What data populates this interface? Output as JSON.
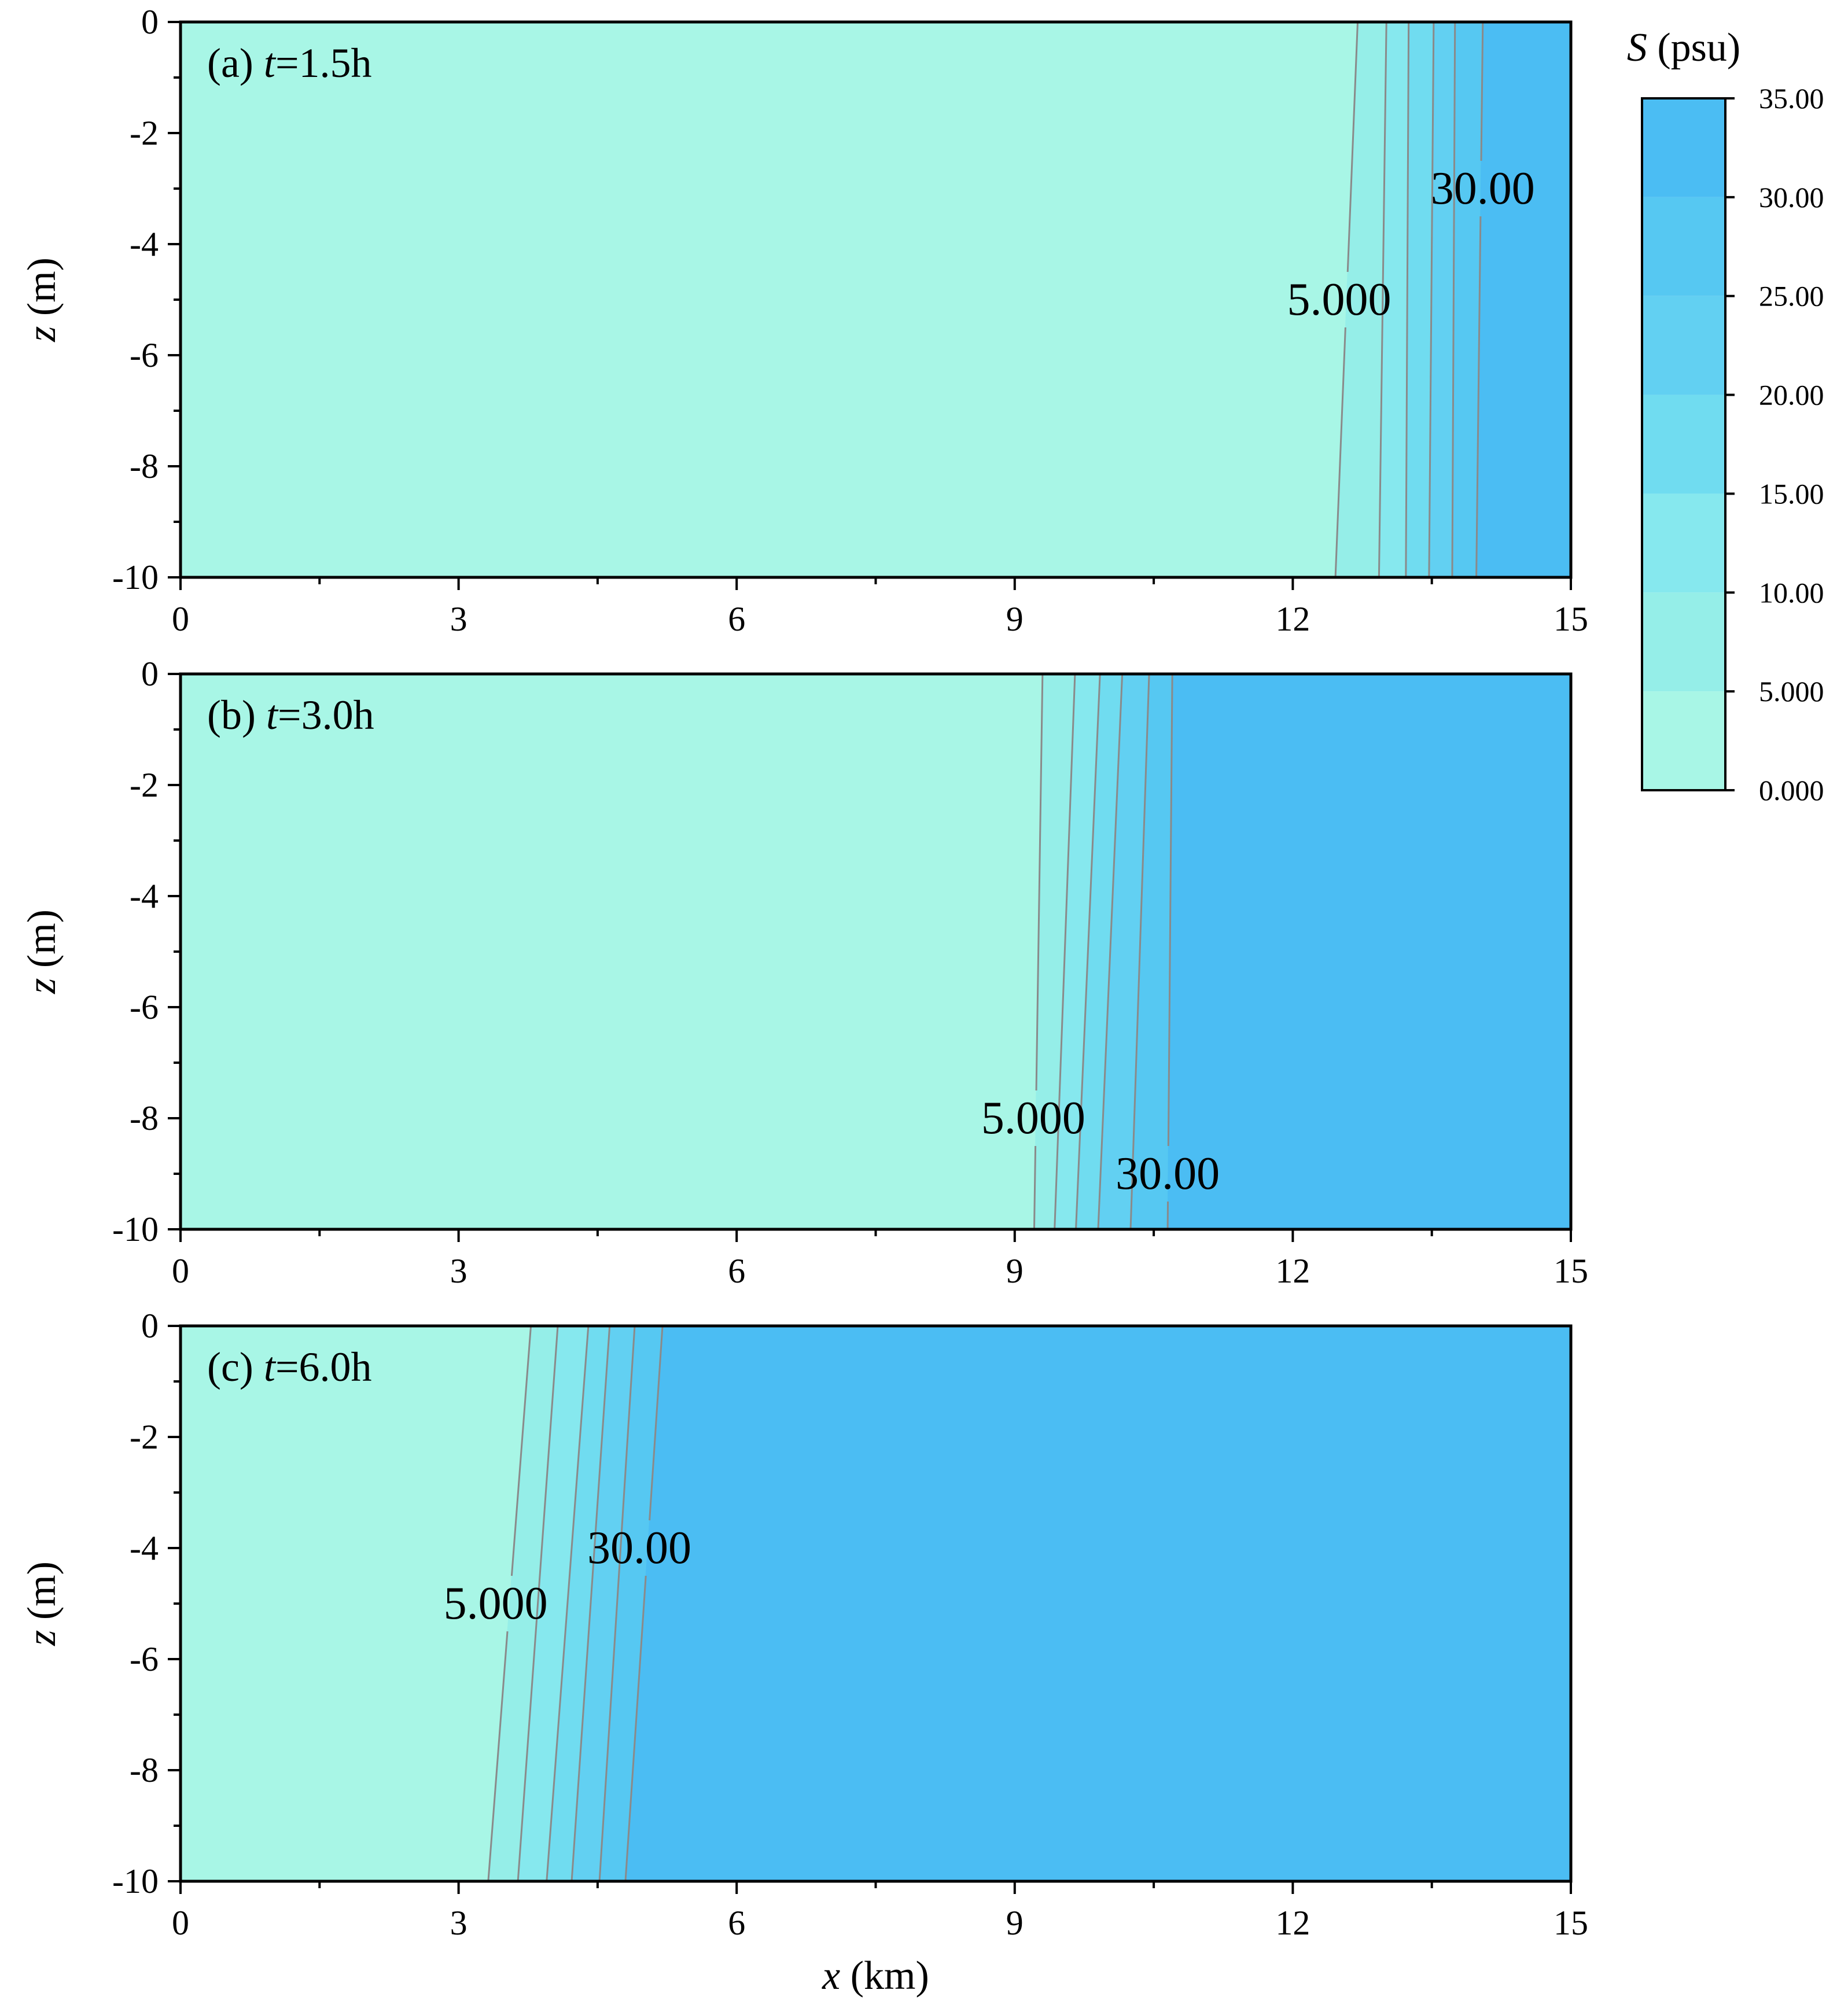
{
  "chart_data": {
    "type": "heatmap",
    "subtype": "filled-contour",
    "xlabel_var": "x",
    "xlabel_unit": "(km)",
    "ylabel_var": "z",
    "ylabel_unit": "(m)",
    "xlim": [
      0,
      15
    ],
    "ylim": [
      -10,
      0
    ],
    "x_ticks": [
      "0",
      "3",
      "6",
      "9",
      "12",
      "15"
    ],
    "y_ticks": [
      "0",
      "-2",
      "-4",
      "-6",
      "-8",
      "-10"
    ],
    "colorbar": {
      "title_var": "S",
      "title_unit": "(psu)",
      "range": [
        0,
        35
      ],
      "ticks": [
        "0.000",
        "5.000",
        "10.00",
        "15.00",
        "20.00",
        "25.00",
        "30.00",
        "35.00"
      ],
      "levels": [
        0,
        5,
        10,
        15,
        20,
        25,
        30,
        35
      ],
      "colors": [
        "#A8F6E6",
        "#95EEE8",
        "#86E8EE",
        "#70DCF0",
        "#62D0F2",
        "#56C8F2",
        "#4BBDF3"
      ]
    },
    "panels": [
      {
        "id": "a",
        "label_prefix": "(a) ",
        "label_var": "t",
        "label_value": "=1.5h",
        "contours": [
          {
            "level": 5,
            "x_bottom": 12.46,
            "x_top": 12.7
          },
          {
            "level": 10,
            "x_bottom": 12.93,
            "x_top": 13.01
          },
          {
            "level": 15,
            "x_bottom": 13.22,
            "x_top": 13.25
          },
          {
            "level": 20,
            "x_bottom": 13.47,
            "x_top": 13.52
          },
          {
            "level": 25,
            "x_bottom": 13.72,
            "x_top": 13.75
          },
          {
            "level": 30,
            "x_bottom": 13.98,
            "x_top": 14.05
          }
        ],
        "contour_labels": [
          {
            "text": "5.000",
            "x": 12.5,
            "z": -5.0
          },
          {
            "text": "30.00",
            "x": 14.05,
            "z": -3.0
          }
        ]
      },
      {
        "id": "b",
        "label_prefix": "(b) ",
        "label_var": "t",
        "label_value": "=3.0h",
        "contours": [
          {
            "level": 5,
            "x_bottom": 9.21,
            "x_top": 9.3
          },
          {
            "level": 10,
            "x_bottom": 9.43,
            "x_top": 9.65
          },
          {
            "level": 15,
            "x_bottom": 9.66,
            "x_top": 9.92
          },
          {
            "level": 20,
            "x_bottom": 9.9,
            "x_top": 10.16
          },
          {
            "level": 25,
            "x_bottom": 10.25,
            "x_top": 10.45
          },
          {
            "level": 30,
            "x_bottom": 10.65,
            "x_top": 10.7
          }
        ],
        "contour_labels": [
          {
            "text": "5.000",
            "x": 9.2,
            "z": -8.0
          },
          {
            "text": "30.00",
            "x": 10.65,
            "z": -9.0
          }
        ]
      },
      {
        "id": "c",
        "label_prefix": "(c) ",
        "label_var": "t",
        "label_value": "=6.0h",
        "contours": [
          {
            "level": 5,
            "x_bottom": 3.32,
            "x_top": 3.78
          },
          {
            "level": 10,
            "x_bottom": 3.64,
            "x_top": 4.07
          },
          {
            "level": 15,
            "x_bottom": 3.95,
            "x_top": 4.4
          },
          {
            "level": 20,
            "x_bottom": 4.22,
            "x_top": 4.63
          },
          {
            "level": 25,
            "x_bottom": 4.52,
            "x_top": 4.9
          },
          {
            "level": 30,
            "x_bottom": 4.8,
            "x_top": 5.2
          }
        ],
        "contour_labels": [
          {
            "text": "5.000",
            "x": 3.4,
            "z": -5.0
          },
          {
            "text": "30.00",
            "x": 4.95,
            "z": -4.0
          }
        ]
      }
    ]
  }
}
